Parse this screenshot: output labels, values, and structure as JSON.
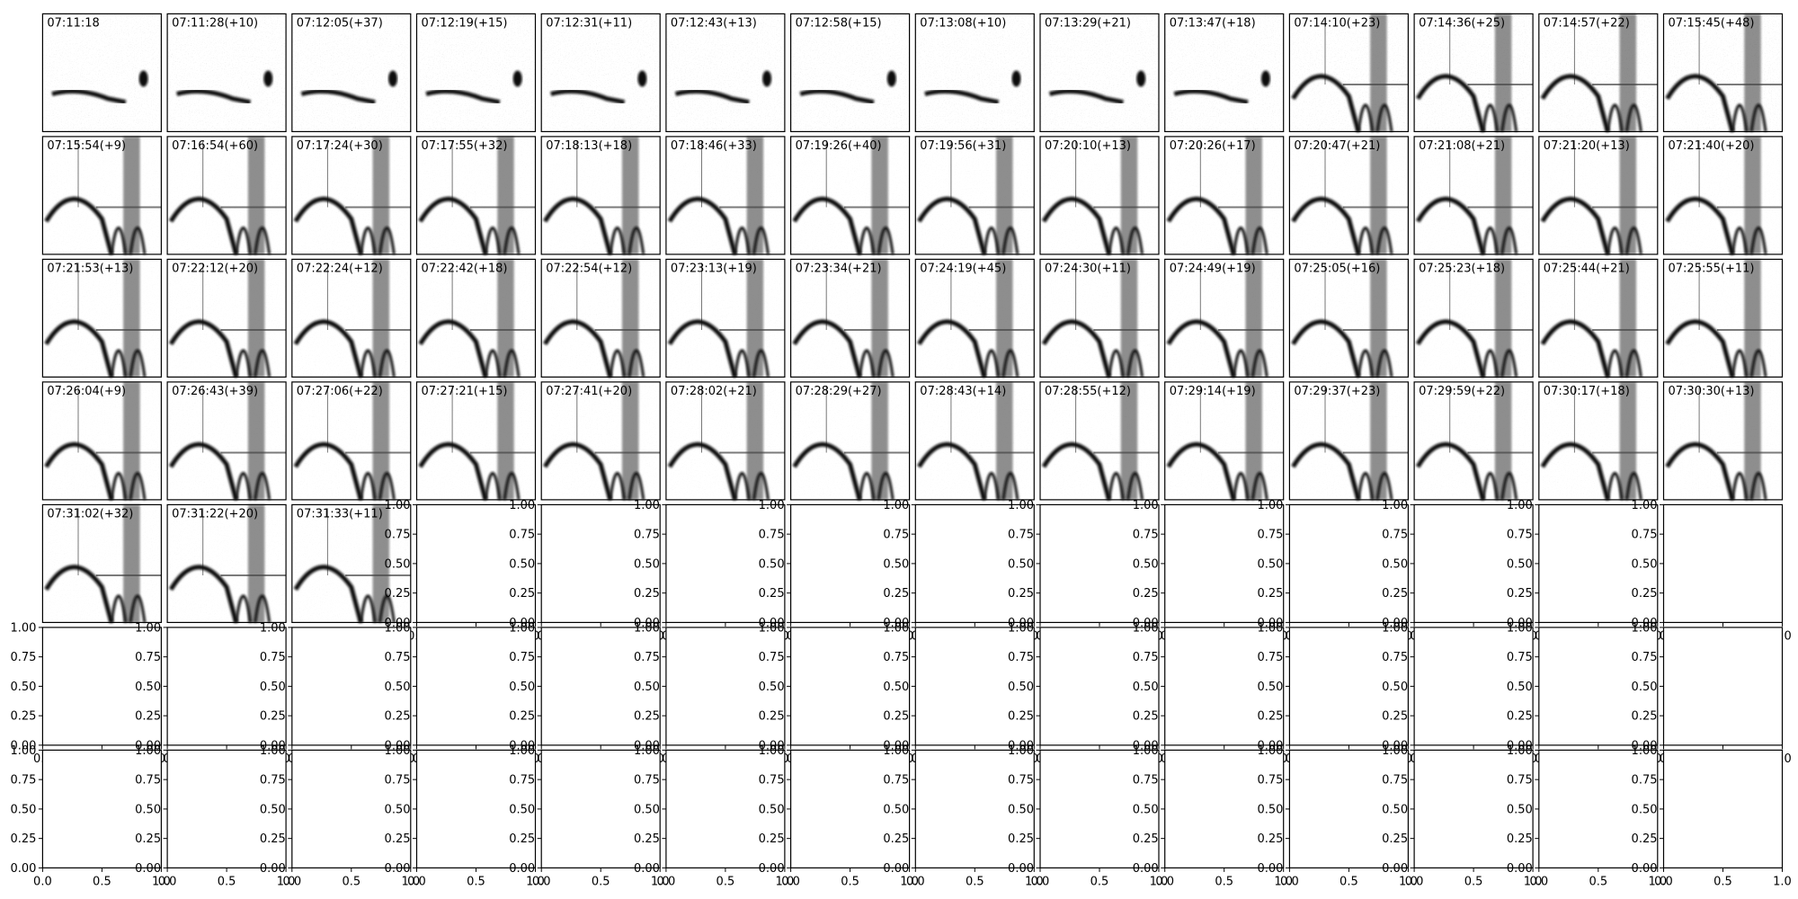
{
  "chart_data": {
    "type": "spectrogram-grid",
    "titles": [
      "07:11:18",
      "07:11:28(+10)",
      "07:12:05(+37)",
      "07:12:19(+15)",
      "07:12:31(+11)",
      "07:12:43(+13)",
      "07:12:58(+15)",
      "07:13:08(+10)",
      "07:13:29(+21)",
      "07:13:47(+18)",
      "07:14:10(+23)",
      "07:14:36(+25)",
      "07:14:57(+22)",
      "07:15:45(+48)",
      "07:15:54(+9)",
      "07:16:54(+60)",
      "07:17:24(+30)",
      "07:17:55(+32)",
      "07:18:13(+18)",
      "07:18:46(+33)",
      "07:19:26(+40)",
      "07:19:56(+31)",
      "07:20:10(+13)",
      "07:20:26(+17)",
      "07:20:47(+21)",
      "07:21:08(+21)",
      "07:21:20(+13)",
      "07:21:40(+20)",
      "07:21:53(+13)",
      "07:22:12(+20)",
      "07:22:24(+12)",
      "07:22:42(+18)",
      "07:22:54(+12)",
      "07:23:13(+19)",
      "07:23:34(+21)",
      "07:24:19(+45)",
      "07:24:30(+11)",
      "07:24:49(+19)",
      "07:25:05(+16)",
      "07:25:23(+18)",
      "07:25:44(+21)",
      "07:25:55(+11)",
      "07:26:04(+9)",
      "07:26:43(+39)",
      "07:27:06(+22)",
      "07:27:21(+15)",
      "07:27:41(+20)",
      "07:28:02(+21)",
      "07:28:29(+27)",
      "07:28:43(+14)",
      "07:28:55(+12)",
      "07:29:14(+19)",
      "07:29:37(+23)",
      "07:29:59(+22)",
      "07:30:17(+18)",
      "07:30:30(+13)",
      "07:31:02(+32)",
      "07:31:22(+20)",
      "07:31:33(+11)"
    ],
    "empty_axes": {
      "xlim": [
        0,
        1
      ],
      "ylim": [
        0,
        1
      ],
      "xticks": [
        {
          "value": 0,
          "label": "0.0"
        },
        {
          "value": 0.5,
          "label": "0.5"
        },
        {
          "value": 1,
          "label": "1.0"
        }
      ],
      "yticks": [
        {
          "value": 0,
          "label": "0.00"
        },
        {
          "value": 0.25,
          "label": "0.25"
        },
        {
          "value": 0.5,
          "label": "0.50"
        },
        {
          "value": 0.75,
          "label": "0.75"
        },
        {
          "value": 1,
          "label": "1.00"
        }
      ]
    }
  }
}
